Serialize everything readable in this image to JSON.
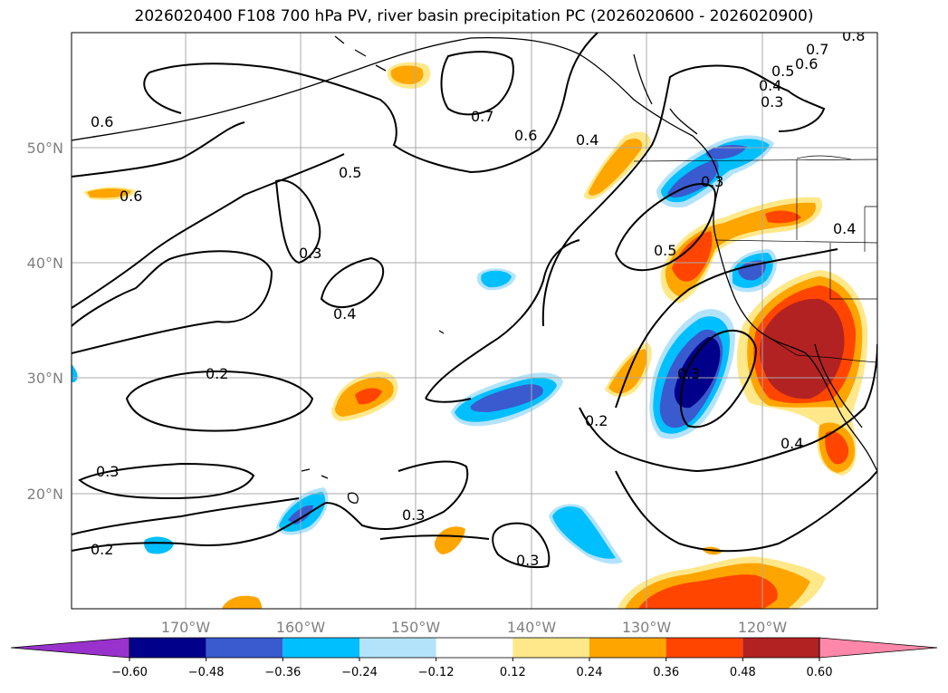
{
  "title": "2026020400 F108 700 hPa PV, river basin precipitation PC (2026020600 - 2026020900)",
  "longitude_labels": [
    "170°W",
    "160°W",
    "150°W",
    "140°W",
    "130°W",
    "120°W"
  ],
  "latitude_labels": [
    "50°N",
    "40°N",
    "30°N",
    "20°N"
  ],
  "colorbar": {
    "ticks": [
      "-0.60",
      "-0.48",
      "-0.36",
      "-0.24",
      "-0.12",
      "0.12",
      "0.24",
      "0.36",
      "0.48",
      "0.60"
    ],
    "colors": [
      "#9932cc",
      "#00008b",
      "#3a5bcf",
      "#00bfff",
      "#b3e3fb",
      "#ffffff",
      "#ffe88a",
      "#ffa500",
      "#ff4500",
      "#b22222",
      "#ff88aa"
    ]
  },
  "contour_labels": [
    "0.7",
    "0.8",
    "0.6",
    "0.5",
    "0.4",
    "0.3",
    "0.7",
    "0.6",
    "0.4",
    "0.6",
    "0.5",
    "0.6",
    "0.3",
    "0.5",
    "0.4",
    "0.2",
    "0.3",
    "0.3",
    "0.3",
    "0.2",
    "0.3",
    "0.2",
    "0.4",
    "0.3",
    "0.4"
  ]
}
